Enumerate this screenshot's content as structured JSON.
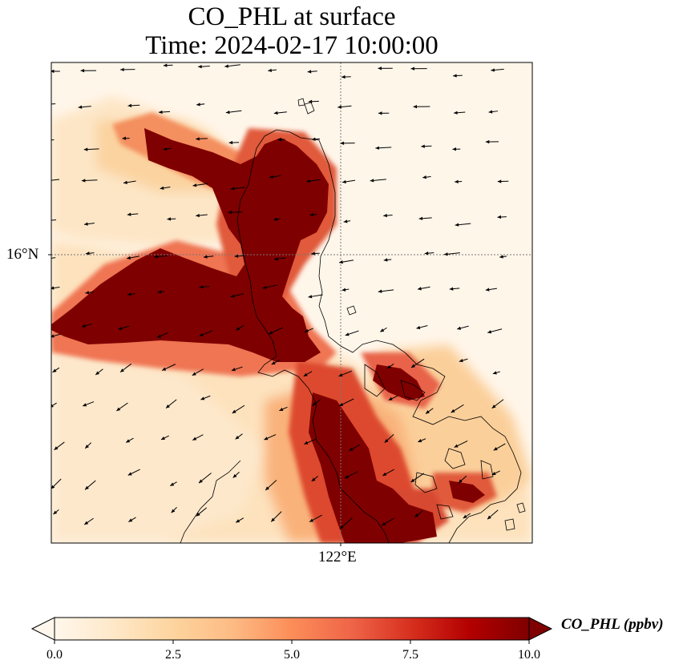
{
  "title_line1": "CO_PHL at surface",
  "title_line2": "Time: 2024-02-17 10:00:00",
  "lat_tick": "16°N",
  "lon_tick": "122°E",
  "colorbar": {
    "label": "CO_PHL (ppbv)",
    "ticks": [
      "0.0",
      "2.5",
      "5.0",
      "7.5",
      "10.0"
    ],
    "min": 0,
    "max": 10,
    "extend": "both",
    "colormap": "OrRd",
    "colors": [
      "#fff7ec",
      "#fee8c8",
      "#fdd49e",
      "#fdbb84",
      "#fc8d59",
      "#ef6548",
      "#d7301f",
      "#b30000",
      "#7f0000"
    ]
  }
}
